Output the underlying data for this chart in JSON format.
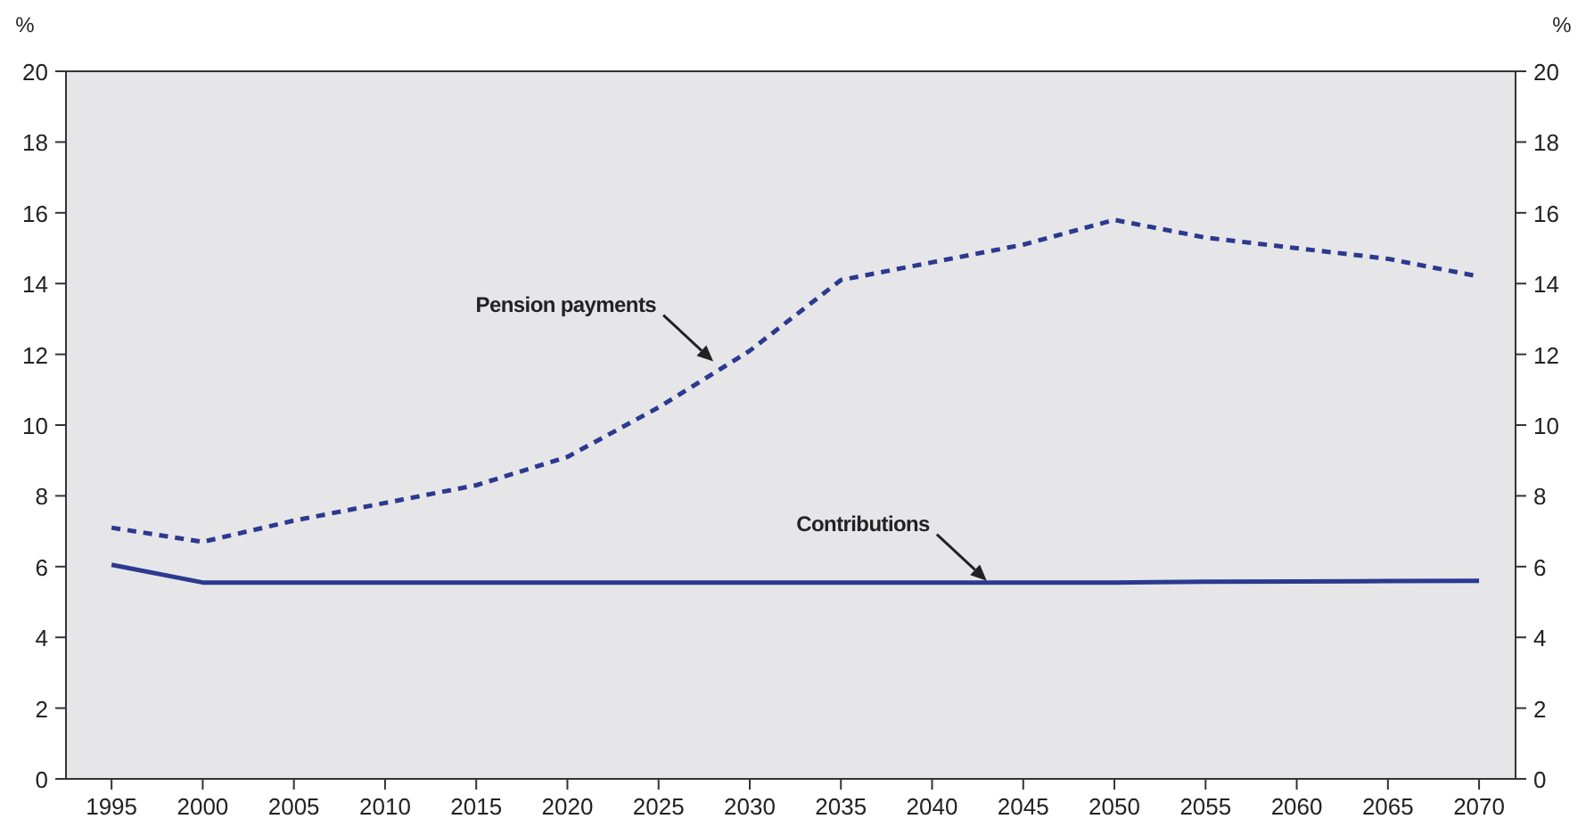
{
  "chart_data": {
    "type": "line",
    "x": [
      1995,
      2000,
      2005,
      2010,
      2015,
      2020,
      2025,
      2030,
      2035,
      2040,
      2045,
      2050,
      2055,
      2060,
      2065,
      2070
    ],
    "series": [
      {
        "color": "#2b3990",
        "line_style": "dashed",
        "values": [
          7.1,
          6.7,
          7.3,
          7.8,
          8.3,
          9.1,
          10.5,
          12.1,
          14.1,
          14.6,
          15.1,
          15.8,
          15.3,
          15.0,
          14.7,
          14.2
        ]
      },
      {
        "color": "#2b3990",
        "line_style": "solid",
        "values": [
          6.05,
          5.55,
          5.55,
          5.55,
          5.55,
          5.55,
          5.55,
          5.55,
          5.55,
          5.55,
          5.55,
          5.55,
          5.57,
          5.58,
          5.59,
          5.6
        ]
      }
    ],
    "xlim": [
      1992.5,
      2072
    ],
    "xticks": [
      1995,
      2000,
      2005,
      2010,
      2015,
      2020,
      2025,
      2030,
      2035,
      2040,
      2045,
      2050,
      2055,
      2060,
      2065,
      2070
    ],
    "ylim": [
      0,
      20
    ],
    "yticks": [
      0,
      2,
      4,
      6,
      8,
      10,
      12,
      14,
      16,
      18,
      20
    ],
    "y2lim": [
      0,
      20
    ],
    "y2ticks": [
      0,
      2,
      4,
      6,
      8,
      10,
      12,
      14,
      16,
      18,
      20
    ],
    "ylabel": "%",
    "y2label": "%",
    "grid": false,
    "marker": "none",
    "annotations": [
      {
        "text": "Pension payments",
        "x": 2028,
        "y": 11.8
      },
      {
        "text": "Contributions",
        "x": 2043,
        "y": 5.6
      }
    ]
  }
}
